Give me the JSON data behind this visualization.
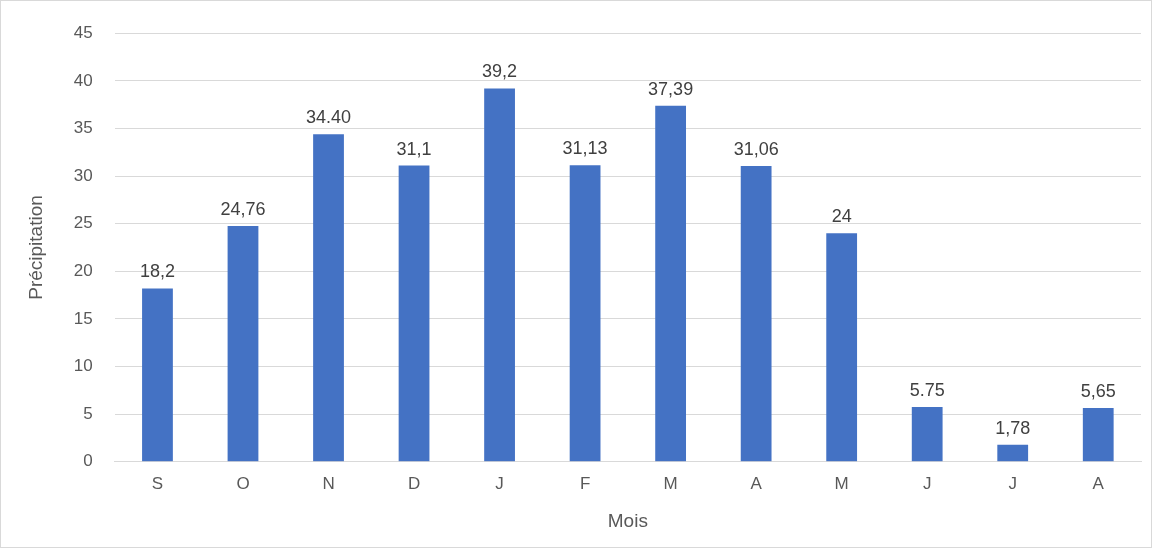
{
  "chart_data": {
    "type": "bar",
    "xlabel": "Mois",
    "ylabel": "Précipitation",
    "categories": [
      "S",
      "O",
      "N",
      "D",
      "J",
      "F",
      "M",
      "A",
      "M",
      "J",
      "J",
      "A"
    ],
    "values": [
      18.2,
      24.76,
      34.4,
      31.1,
      39.2,
      31.13,
      37.39,
      31.06,
      24,
      5.75,
      1.78,
      5.65
    ],
    "value_labels": [
      "18,2",
      "24,76",
      "34.40",
      "31,1",
      "39,2",
      "31,13",
      "37,39",
      "31,06",
      "24",
      "5.75",
      "1,78",
      "5,65"
    ],
    "color": "#4472c4",
    "ylim": [
      0,
      45
    ],
    "yticks": [
      0,
      5,
      10,
      15,
      20,
      25,
      30,
      35,
      40,
      45
    ],
    "grid": "y"
  }
}
